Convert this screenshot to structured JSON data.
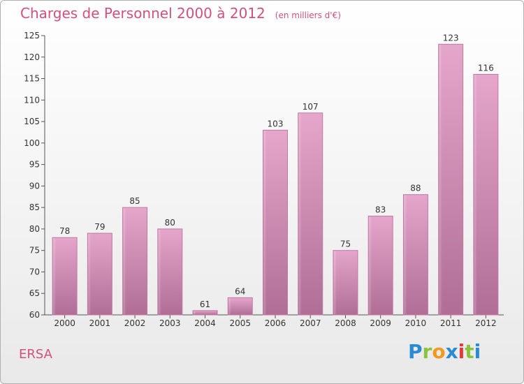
{
  "header": {
    "title": "Charges de Personnel 2000 à 2012",
    "subtitle": "(en milliers d'€)"
  },
  "commune": "ERSA",
  "logo": {
    "letters": [
      {
        "char": "P",
        "color": "#2a8ad4"
      },
      {
        "char": "r",
        "color": "#8ac43f"
      },
      {
        "char": "o",
        "color": "#f29a1f"
      },
      {
        "char": "x",
        "color": "#2a8ad4"
      },
      {
        "char": "i",
        "color": "#e23a3a"
      },
      {
        "char": "t",
        "color": "#8ac43f"
      },
      {
        "char": "i",
        "color": "#2a8ad4"
      }
    ]
  },
  "chart_data": {
    "type": "bar",
    "categories": [
      "2000",
      "2001",
      "2002",
      "2003",
      "2004",
      "2005",
      "2006",
      "2007",
      "2008",
      "2009",
      "2010",
      "2011",
      "2012"
    ],
    "values": [
      78,
      79,
      85,
      80,
      61,
      64,
      103,
      107,
      75,
      83,
      88,
      123,
      116
    ],
    "data_labels": [
      "78",
      "79",
      "85",
      "80",
      "61",
      "64",
      "103",
      "107",
      "75",
      "83",
      "88",
      "123",
      "116"
    ],
    "yticks": [
      "60",
      "65",
      "70",
      "75",
      "80",
      "85",
      "90",
      "95",
      "100",
      "105",
      "110",
      "115",
      "120",
      "125"
    ],
    "ylim": [
      60,
      125
    ],
    "grid": false,
    "bar_color": "#d98fb6"
  }
}
